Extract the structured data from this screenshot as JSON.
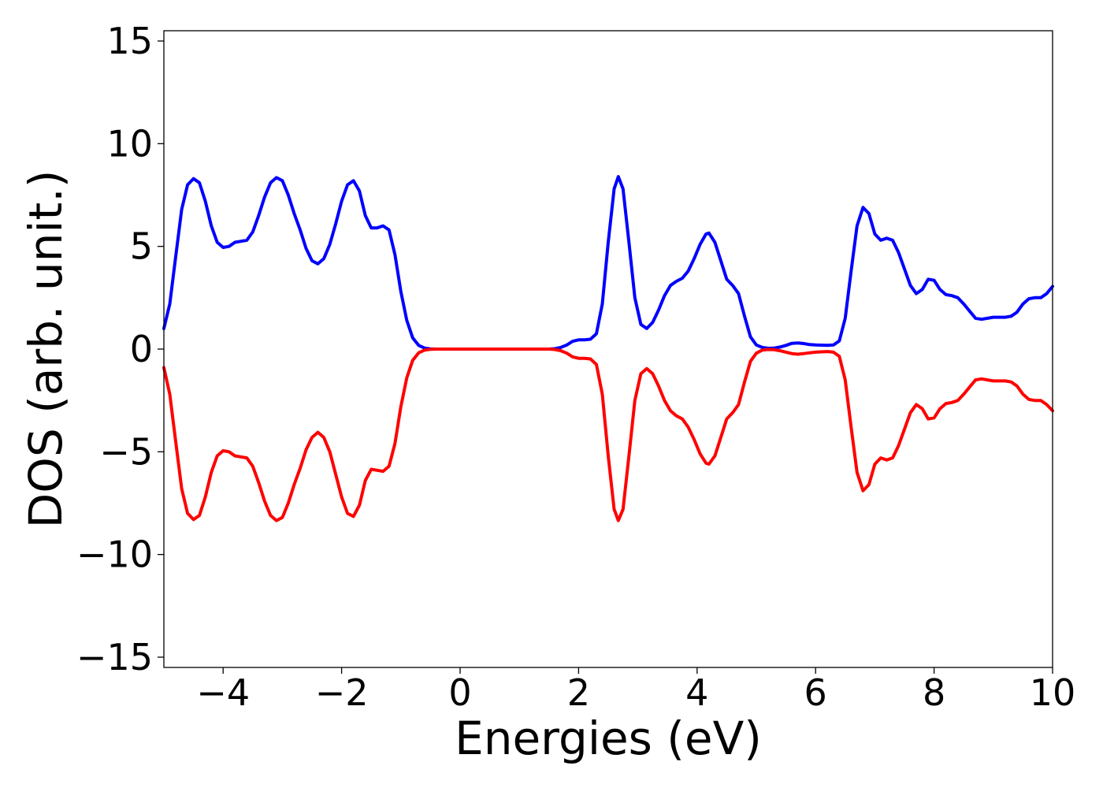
{
  "chart_data": {
    "type": "line",
    "title": "",
    "xlabel": "Energies (eV)",
    "ylabel": "DOS (arb. unit.)",
    "xlim": [
      -5,
      10
    ],
    "ylim": [
      -15.5,
      15.5
    ],
    "grid": false,
    "x_ticks": [
      {
        "value": -4,
        "label": "−4"
      },
      {
        "value": -2,
        "label": "−2"
      },
      {
        "value": 0,
        "label": "0"
      },
      {
        "value": 2,
        "label": "2"
      },
      {
        "value": 4,
        "label": "4"
      },
      {
        "value": 6,
        "label": "6"
      },
      {
        "value": 8,
        "label": "8"
      },
      {
        "value": 10,
        "label": "10"
      }
    ],
    "y_ticks": [
      {
        "value": 15,
        "label": "15"
      },
      {
        "value": 10,
        "label": "10"
      },
      {
        "value": 5,
        "label": "5"
      },
      {
        "value": 0,
        "label": "0"
      },
      {
        "value": -5,
        "label": "−5"
      },
      {
        "value": -10,
        "label": "−10"
      },
      {
        "value": -15,
        "label": "−15"
      }
    ],
    "series": [
      {
        "color": "#0000ff",
        "points": [
          [
            -5.0,
            1.0
          ],
          [
            -4.9,
            2.2
          ],
          [
            -4.8,
            4.5
          ],
          [
            -4.7,
            6.8
          ],
          [
            -4.6,
            8.0
          ],
          [
            -4.5,
            8.3
          ],
          [
            -4.4,
            8.1
          ],
          [
            -4.3,
            7.2
          ],
          [
            -4.2,
            6.0
          ],
          [
            -4.1,
            5.2
          ],
          [
            -4.0,
            4.95
          ],
          [
            -3.9,
            5.0
          ],
          [
            -3.8,
            5.2
          ],
          [
            -3.7,
            5.25
          ],
          [
            -3.6,
            5.3
          ],
          [
            -3.5,
            5.7
          ],
          [
            -3.4,
            6.5
          ],
          [
            -3.3,
            7.4
          ],
          [
            -3.2,
            8.1
          ],
          [
            -3.1,
            8.35
          ],
          [
            -3.0,
            8.2
          ],
          [
            -2.9,
            7.5
          ],
          [
            -2.8,
            6.6
          ],
          [
            -2.7,
            5.8
          ],
          [
            -2.6,
            4.9
          ],
          [
            -2.5,
            4.3
          ],
          [
            -2.4,
            4.15
          ],
          [
            -2.3,
            4.4
          ],
          [
            -2.2,
            5.1
          ],
          [
            -2.1,
            6.1
          ],
          [
            -2.0,
            7.2
          ],
          [
            -1.9,
            8.0
          ],
          [
            -1.8,
            8.2
          ],
          [
            -1.7,
            7.7
          ],
          [
            -1.6,
            6.5
          ],
          [
            -1.5,
            5.9
          ],
          [
            -1.4,
            5.9
          ],
          [
            -1.3,
            6.0
          ],
          [
            -1.2,
            5.8
          ],
          [
            -1.1,
            4.6
          ],
          [
            -1.0,
            2.8
          ],
          [
            -0.9,
            1.4
          ],
          [
            -0.8,
            0.55
          ],
          [
            -0.7,
            0.18
          ],
          [
            -0.6,
            0.05
          ],
          [
            -0.5,
            0.01
          ],
          [
            -0.4,
            0.0
          ],
          [
            0.0,
            0.0
          ],
          [
            1.0,
            0.0
          ],
          [
            1.5,
            0.0
          ],
          [
            1.6,
            0.02
          ],
          [
            1.7,
            0.08
          ],
          [
            1.8,
            0.2
          ],
          [
            1.9,
            0.38
          ],
          [
            2.0,
            0.45
          ],
          [
            2.1,
            0.45
          ],
          [
            2.2,
            0.48
          ],
          [
            2.3,
            0.75
          ],
          [
            2.4,
            2.2
          ],
          [
            2.5,
            5.2
          ],
          [
            2.6,
            7.8
          ],
          [
            2.67,
            8.4
          ],
          [
            2.75,
            7.8
          ],
          [
            2.85,
            5.2
          ],
          [
            2.95,
            2.5
          ],
          [
            3.05,
            1.2
          ],
          [
            3.15,
            1.0
          ],
          [
            3.25,
            1.3
          ],
          [
            3.35,
            1.9
          ],
          [
            3.45,
            2.6
          ],
          [
            3.55,
            3.1
          ],
          [
            3.65,
            3.3
          ],
          [
            3.75,
            3.45
          ],
          [
            3.85,
            3.8
          ],
          [
            3.95,
            4.4
          ],
          [
            4.05,
            5.1
          ],
          [
            4.15,
            5.6
          ],
          [
            4.2,
            5.65
          ],
          [
            4.3,
            5.2
          ],
          [
            4.4,
            4.3
          ],
          [
            4.5,
            3.4
          ],
          [
            4.6,
            3.1
          ],
          [
            4.7,
            2.7
          ],
          [
            4.8,
            1.6
          ],
          [
            4.9,
            0.6
          ],
          [
            5.0,
            0.2
          ],
          [
            5.1,
            0.08
          ],
          [
            5.2,
            0.04
          ],
          [
            5.3,
            0.05
          ],
          [
            5.4,
            0.1
          ],
          [
            5.5,
            0.18
          ],
          [
            5.6,
            0.28
          ],
          [
            5.7,
            0.3
          ],
          [
            5.8,
            0.27
          ],
          [
            5.9,
            0.22
          ],
          [
            6.0,
            0.2
          ],
          [
            6.2,
            0.18
          ],
          [
            6.3,
            0.2
          ],
          [
            6.4,
            0.4
          ],
          [
            6.5,
            1.5
          ],
          [
            6.6,
            3.8
          ],
          [
            6.7,
            6.0
          ],
          [
            6.8,
            6.9
          ],
          [
            6.9,
            6.6
          ],
          [
            7.0,
            5.6
          ],
          [
            7.1,
            5.3
          ],
          [
            7.2,
            5.4
          ],
          [
            7.3,
            5.3
          ],
          [
            7.4,
            4.7
          ],
          [
            7.5,
            3.9
          ],
          [
            7.6,
            3.1
          ],
          [
            7.7,
            2.7
          ],
          [
            7.8,
            2.9
          ],
          [
            7.9,
            3.4
          ],
          [
            8.0,
            3.35
          ],
          [
            8.1,
            2.9
          ],
          [
            8.2,
            2.65
          ],
          [
            8.3,
            2.6
          ],
          [
            8.4,
            2.5
          ],
          [
            8.5,
            2.2
          ],
          [
            8.6,
            1.85
          ],
          [
            8.7,
            1.5
          ],
          [
            8.8,
            1.45
          ],
          [
            8.9,
            1.5
          ],
          [
            9.0,
            1.55
          ],
          [
            9.1,
            1.55
          ],
          [
            9.2,
            1.55
          ],
          [
            9.3,
            1.6
          ],
          [
            9.4,
            1.8
          ],
          [
            9.5,
            2.2
          ],
          [
            9.6,
            2.45
          ],
          [
            9.7,
            2.5
          ],
          [
            9.8,
            2.5
          ],
          [
            9.9,
            2.7
          ],
          [
            10.0,
            3.05
          ]
        ]
      },
      {
        "color": "#ff0000",
        "points": [
          [
            -5.0,
            -0.9
          ],
          [
            -4.9,
            -2.2
          ],
          [
            -4.8,
            -4.5
          ],
          [
            -4.7,
            -6.8
          ],
          [
            -4.6,
            -8.0
          ],
          [
            -4.5,
            -8.3
          ],
          [
            -4.4,
            -8.1
          ],
          [
            -4.3,
            -7.2
          ],
          [
            -4.2,
            -6.0
          ],
          [
            -4.1,
            -5.2
          ],
          [
            -4.0,
            -4.95
          ],
          [
            -3.9,
            -5.0
          ],
          [
            -3.8,
            -5.2
          ],
          [
            -3.7,
            -5.25
          ],
          [
            -3.6,
            -5.3
          ],
          [
            -3.5,
            -5.7
          ],
          [
            -3.4,
            -6.5
          ],
          [
            -3.3,
            -7.4
          ],
          [
            -3.2,
            -8.1
          ],
          [
            -3.1,
            -8.35
          ],
          [
            -3.0,
            -8.2
          ],
          [
            -2.9,
            -7.5
          ],
          [
            -2.8,
            -6.6
          ],
          [
            -2.7,
            -5.8
          ],
          [
            -2.6,
            -4.9
          ],
          [
            -2.5,
            -4.3
          ],
          [
            -2.4,
            -4.05
          ],
          [
            -2.3,
            -4.3
          ],
          [
            -2.2,
            -5.0
          ],
          [
            -2.1,
            -6.1
          ],
          [
            -2.0,
            -7.2
          ],
          [
            -1.9,
            -8.0
          ],
          [
            -1.8,
            -8.15
          ],
          [
            -1.7,
            -7.6
          ],
          [
            -1.6,
            -6.4
          ],
          [
            -1.5,
            -5.85
          ],
          [
            -1.4,
            -5.9
          ],
          [
            -1.3,
            -5.95
          ],
          [
            -1.2,
            -5.7
          ],
          [
            -1.1,
            -4.6
          ],
          [
            -1.0,
            -2.8
          ],
          [
            -0.9,
            -1.4
          ],
          [
            -0.8,
            -0.55
          ],
          [
            -0.7,
            -0.18
          ],
          [
            -0.6,
            -0.05
          ],
          [
            -0.5,
            -0.01
          ],
          [
            -0.4,
            0.0
          ],
          [
            0.0,
            0.0
          ],
          [
            1.0,
            0.0
          ],
          [
            1.5,
            0.0
          ],
          [
            1.6,
            -0.02
          ],
          [
            1.7,
            -0.08
          ],
          [
            1.8,
            -0.2
          ],
          [
            1.9,
            -0.38
          ],
          [
            2.0,
            -0.45
          ],
          [
            2.1,
            -0.45
          ],
          [
            2.2,
            -0.48
          ],
          [
            2.3,
            -0.75
          ],
          [
            2.4,
            -2.2
          ],
          [
            2.5,
            -5.2
          ],
          [
            2.6,
            -7.8
          ],
          [
            2.67,
            -8.35
          ],
          [
            2.75,
            -7.8
          ],
          [
            2.85,
            -5.2
          ],
          [
            2.95,
            -2.5
          ],
          [
            3.05,
            -1.2
          ],
          [
            3.15,
            -0.95
          ],
          [
            3.25,
            -1.2
          ],
          [
            3.35,
            -1.8
          ],
          [
            3.45,
            -2.5
          ],
          [
            3.55,
            -3.0
          ],
          [
            3.65,
            -3.25
          ],
          [
            3.75,
            -3.4
          ],
          [
            3.85,
            -3.8
          ],
          [
            3.95,
            -4.4
          ],
          [
            4.05,
            -5.1
          ],
          [
            4.15,
            -5.55
          ],
          [
            4.2,
            -5.6
          ],
          [
            4.3,
            -5.2
          ],
          [
            4.4,
            -4.3
          ],
          [
            4.5,
            -3.4
          ],
          [
            4.6,
            -3.1
          ],
          [
            4.7,
            -2.7
          ],
          [
            4.8,
            -1.6
          ],
          [
            4.9,
            -0.6
          ],
          [
            5.0,
            -0.2
          ],
          [
            5.1,
            -0.05
          ],
          [
            5.2,
            -0.02
          ],
          [
            5.3,
            -0.03
          ],
          [
            5.4,
            -0.08
          ],
          [
            5.5,
            -0.15
          ],
          [
            5.6,
            -0.22
          ],
          [
            5.7,
            -0.25
          ],
          [
            5.8,
            -0.22
          ],
          [
            5.9,
            -0.18
          ],
          [
            6.0,
            -0.15
          ],
          [
            6.2,
            -0.12
          ],
          [
            6.3,
            -0.15
          ],
          [
            6.4,
            -0.35
          ],
          [
            6.5,
            -1.5
          ],
          [
            6.6,
            -3.8
          ],
          [
            6.7,
            -6.0
          ],
          [
            6.8,
            -6.9
          ],
          [
            6.9,
            -6.6
          ],
          [
            7.0,
            -5.6
          ],
          [
            7.1,
            -5.3
          ],
          [
            7.2,
            -5.4
          ],
          [
            7.3,
            -5.3
          ],
          [
            7.4,
            -4.7
          ],
          [
            7.5,
            -3.9
          ],
          [
            7.6,
            -3.1
          ],
          [
            7.7,
            -2.7
          ],
          [
            7.8,
            -2.9
          ],
          [
            7.9,
            -3.4
          ],
          [
            8.0,
            -3.35
          ],
          [
            8.1,
            -2.9
          ],
          [
            8.2,
            -2.65
          ],
          [
            8.3,
            -2.6
          ],
          [
            8.4,
            -2.5
          ],
          [
            8.5,
            -2.2
          ],
          [
            8.6,
            -1.85
          ],
          [
            8.7,
            -1.5
          ],
          [
            8.8,
            -1.45
          ],
          [
            8.9,
            -1.5
          ],
          [
            9.0,
            -1.55
          ],
          [
            9.1,
            -1.55
          ],
          [
            9.2,
            -1.55
          ],
          [
            9.3,
            -1.6
          ],
          [
            9.4,
            -1.8
          ],
          [
            9.5,
            -2.2
          ],
          [
            9.6,
            -2.45
          ],
          [
            9.7,
            -2.5
          ],
          [
            9.8,
            -2.5
          ],
          [
            9.9,
            -2.7
          ],
          [
            10.0,
            -3.0
          ]
        ]
      }
    ]
  }
}
